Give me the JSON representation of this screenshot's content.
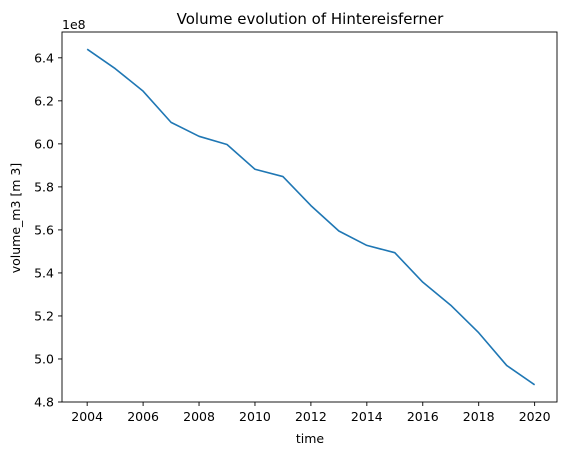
{
  "chart_data": {
    "type": "line",
    "title": "Volume evolution of Hintereisferner",
    "xlabel": "time",
    "ylabel": "volume_m3 [m 3]",
    "y_offset_label": "1e8",
    "xlim": [
      2003.1,
      2020.8
    ],
    "ylim": [
      4.8,
      6.52
    ],
    "x_ticks": [
      2004,
      2006,
      2008,
      2010,
      2012,
      2014,
      2016,
      2018,
      2020
    ],
    "x_tick_labels": [
      "2004",
      "2006",
      "2008",
      "2010",
      "2012",
      "2014",
      "2016",
      "2018",
      "2020"
    ],
    "y_ticks": [
      4.8,
      5.0,
      5.2,
      5.4,
      5.6,
      5.8,
      6.0,
      6.2,
      6.4
    ],
    "y_tick_labels": [
      "4.8",
      "5.0",
      "5.2",
      "5.4",
      "5.6",
      "5.8",
      "6.0",
      "6.2",
      "6.4"
    ],
    "grid": false,
    "color": "#1f77b4",
    "series": [
      {
        "x": [
          2004,
          2005,
          2006,
          2007,
          2008,
          2009,
          2010,
          2011,
          2012,
          2013,
          2014,
          2015,
          2016,
          2017,
          2018,
          2019,
          2020
        ],
        "values": [
          6.44,
          6.35,
          6.245,
          6.1,
          6.035,
          5.997,
          5.882,
          5.848,
          5.713,
          5.595,
          5.528,
          5.494,
          5.357,
          5.25,
          5.122,
          4.97,
          4.88
        ]
      }
    ]
  }
}
